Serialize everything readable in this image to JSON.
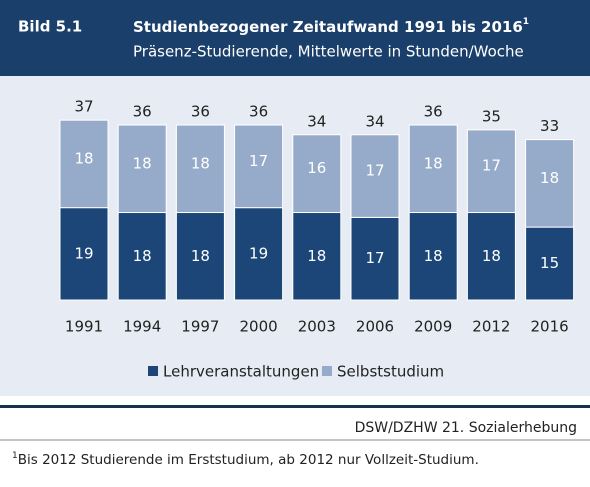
{
  "header": {
    "label": "Bild 5.1",
    "title": "Studienbezogener Zeitaufwand 1991 bis 2016",
    "title_note": "1",
    "subtitle": "Präsenz-Studierende, Mittelwerte in Stunden/Woche"
  },
  "chart_data": {
    "type": "stacked-bar",
    "categories": [
      "1991",
      "1994",
      "1997",
      "2000",
      "2003",
      "2006",
      "2009",
      "2012",
      "2016"
    ],
    "series": [
      {
        "name": "Lehrveranstaltungen",
        "color": "#1b4677",
        "values": [
          19,
          18,
          18,
          19,
          18,
          17,
          18,
          18,
          15
        ]
      },
      {
        "name": "Selbststudium",
        "color": "#96abc9",
        "values": [
          18,
          18,
          18,
          17,
          16,
          17,
          18,
          17,
          18
        ]
      }
    ],
    "totals": [
      37,
      36,
      36,
      36,
      34,
      34,
      36,
      35,
      33
    ]
  },
  "source": "DSW/DZHW 21. Sozialerhebung",
  "footnote": {
    "mark": "1",
    "text": "Bis 2012 Studierende im Erststudium, ab 2012 nur Vollzeit-Studium."
  }
}
